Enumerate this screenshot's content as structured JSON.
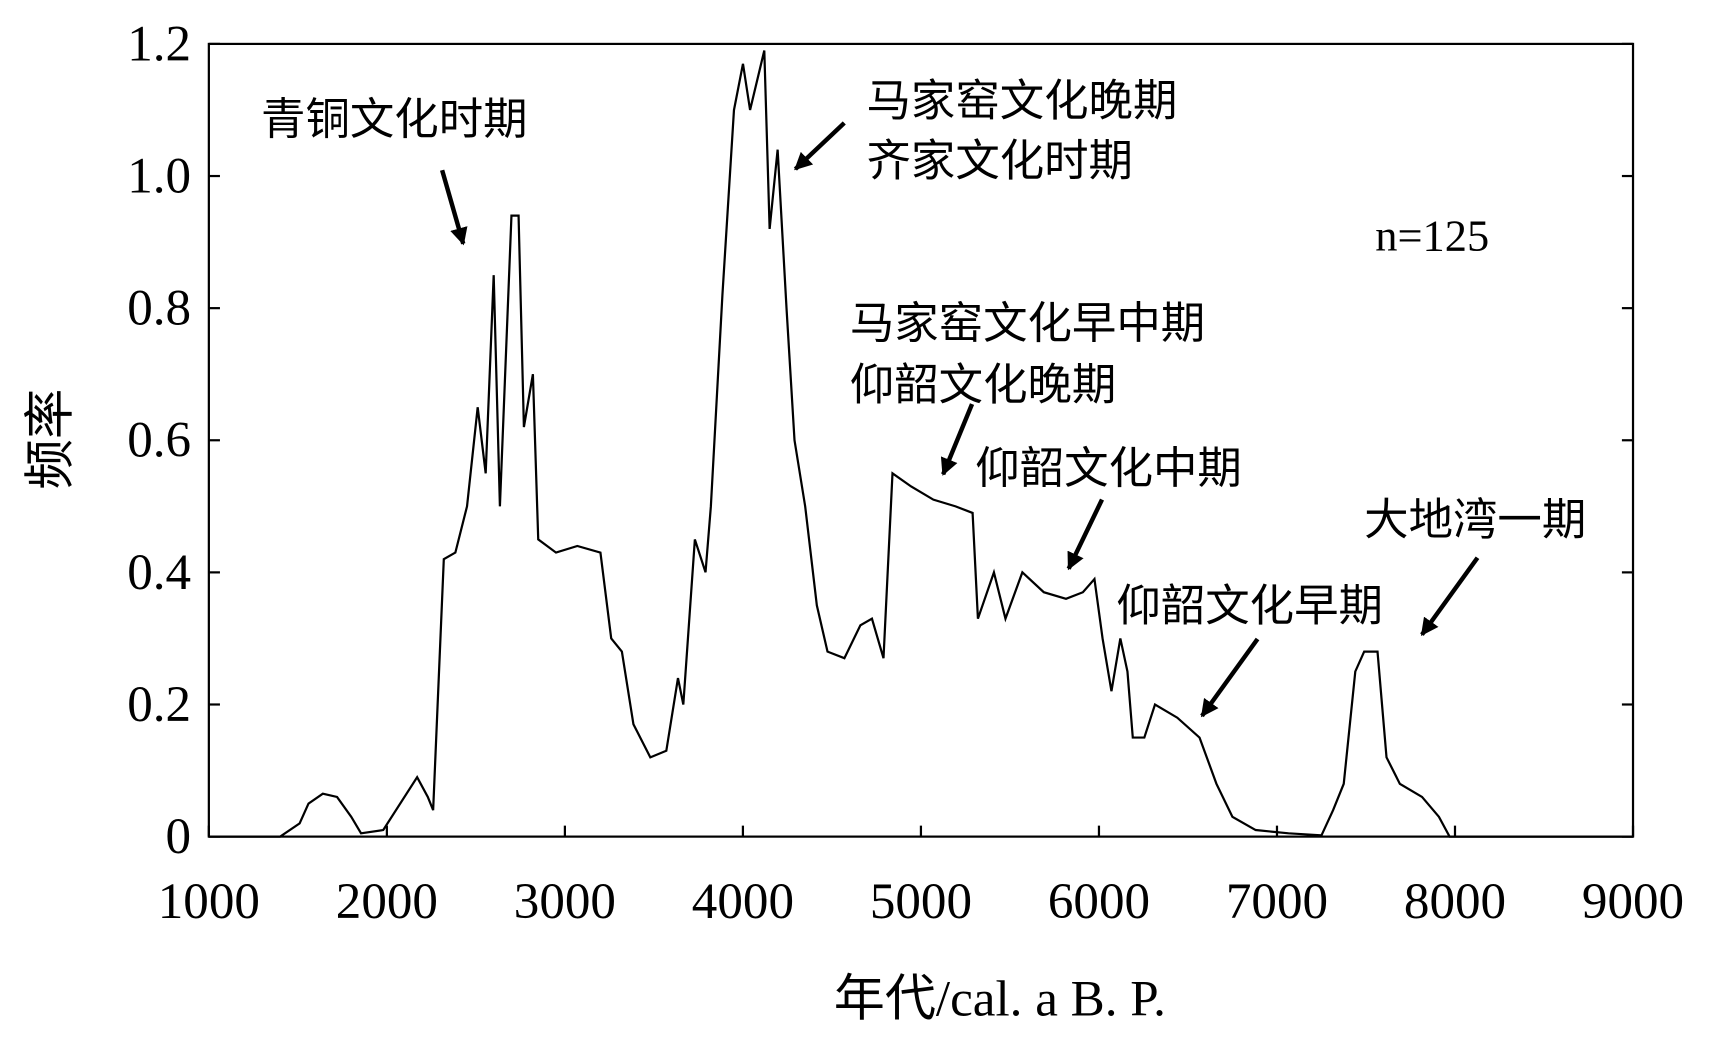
{
  "chart_data": {
    "type": "line",
    "xlabel": "年代/cal. a B. P.",
    "ylabel": "频率",
    "xlim": [
      1000,
      9000
    ],
    "ylim": [
      0,
      1.2
    ],
    "xticks": [
      1000,
      2000,
      3000,
      4000,
      5000,
      6000,
      7000,
      8000,
      9000
    ],
    "yticks": [
      0,
      0.2,
      0.4,
      0.6,
      0.8,
      {
        "value": 1,
        "label": "1.0"
      },
      1.2
    ],
    "color": "#000000",
    "x": [
      1000,
      1400,
      1510,
      1560,
      1640,
      1720,
      1800,
      1855,
      1980,
      2170,
      2230,
      2260,
      2320,
      2385,
      2450,
      2510,
      2555,
      2600,
      2635,
      2700,
      2740,
      2770,
      2820,
      2850,
      2950,
      3070,
      3200,
      3260,
      3320,
      3385,
      3480,
      3570,
      3635,
      3665,
      3730,
      3790,
      3820,
      3885,
      3950,
      4000,
      4040,
      4120,
      4150,
      4195,
      4245,
      4290,
      4350,
      4415,
      4475,
      4570,
      4660,
      4725,
      4790,
      4840,
      4945,
      5070,
      5195,
      5290,
      5320,
      5410,
      5475,
      5570,
      5690,
      5815,
      5910,
      5975,
      6020,
      6070,
      6120,
      6160,
      6190,
      6255,
      6315,
      6440,
      6565,
      6660,
      6750,
      6880,
      7065,
      7250,
      7315,
      7375,
      7440,
      7490,
      7565,
      7615,
      7690,
      7815,
      7910,
      7970,
      9000
    ],
    "y": [
      0,
      0,
      0.02,
      0.05,
      0.065,
      0.06,
      0.03,
      0.005,
      0.01,
      0.09,
      0.06,
      0.04,
      0.42,
      0.43,
      0.5,
      0.65,
      0.55,
      0.85,
      0.5,
      0.94,
      0.94,
      0.62,
      0.7,
      0.45,
      0.43,
      0.44,
      0.43,
      0.3,
      0.28,
      0.17,
      0.12,
      0.13,
      0.24,
      0.2,
      0.45,
      0.4,
      0.5,
      0.82,
      1.1,
      1.17,
      1.1,
      1.19,
      0.92,
      1.04,
      0.8,
      0.6,
      0.5,
      0.35,
      0.28,
      0.27,
      0.32,
      0.33,
      0.27,
      0.55,
      0.53,
      0.51,
      0.5,
      0.49,
      0.33,
      0.4,
      0.33,
      0.4,
      0.37,
      0.36,
      0.37,
      0.39,
      0.3,
      0.22,
      0.3,
      0.25,
      0.15,
      0.15,
      0.2,
      0.18,
      0.15,
      0.08,
      0.03,
      0.01,
      0.005,
      0.002,
      0.04,
      0.08,
      0.25,
      0.28,
      0.28,
      0.12,
      0.08,
      0.06,
      0.03,
      0,
      0
    ],
    "annotations": [
      "青铜文化时期",
      "马家窑文化晚期",
      "齐家文化时期",
      "n=125",
      "马家窑文化早中期",
      "仰韶文化晚期",
      "仰韶文化中期",
      "仰韶文化早期",
      "大地湾一期"
    ]
  }
}
